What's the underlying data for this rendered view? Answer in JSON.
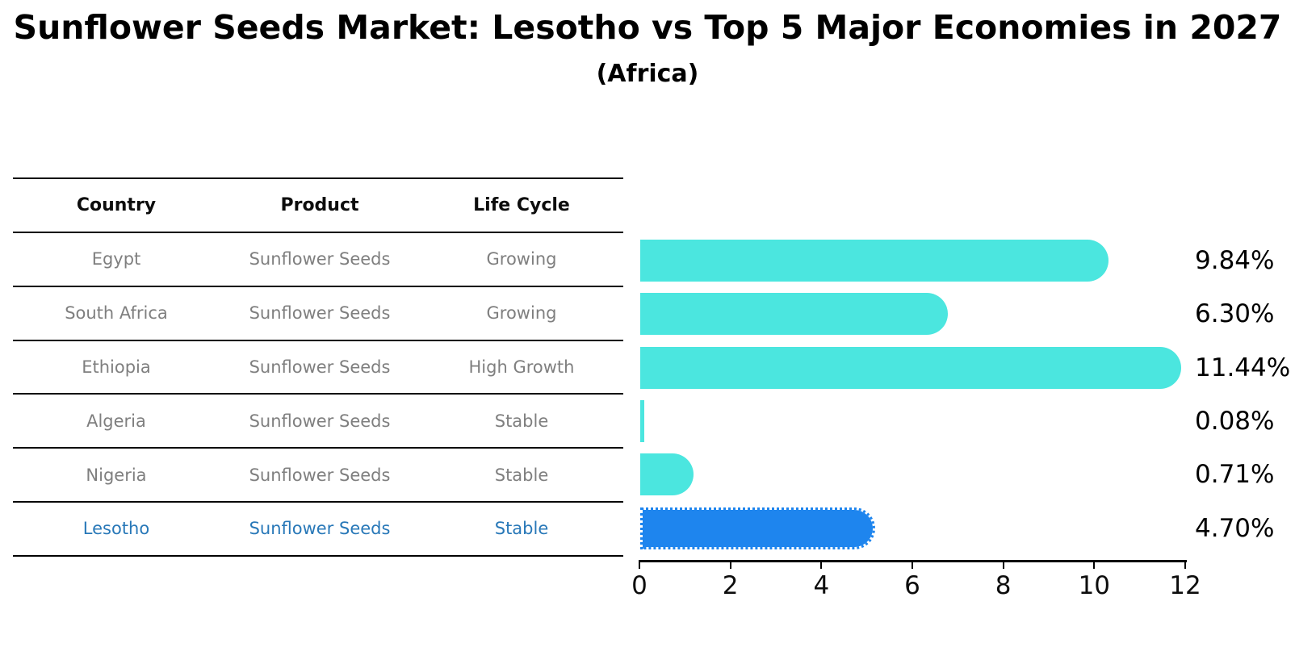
{
  "title": "Sunflower Seeds Market: Lesotho vs Top 5 Major Economies in 2027",
  "subtitle": "(Africa)",
  "table": {
    "headers": [
      "Country",
      "Product",
      "Life Cycle"
    ],
    "rows": [
      {
        "country": "Egypt",
        "product": "Sunflower Seeds",
        "life_cycle": "Growing",
        "highlight": false
      },
      {
        "country": "South Africa",
        "product": "Sunflower Seeds",
        "life_cycle": "Growing",
        "highlight": false
      },
      {
        "country": "Ethiopia",
        "product": "Sunflower Seeds",
        "life_cycle": "High Growth",
        "highlight": false
      },
      {
        "country": "Algeria",
        "product": "Sunflower Seeds",
        "life_cycle": "Stable",
        "highlight": false
      },
      {
        "country": "Nigeria",
        "product": "Sunflower Seeds",
        "life_cycle": "Stable",
        "highlight": false
      },
      {
        "country": "Lesotho",
        "product": "Sunflower Seeds",
        "life_cycle": "Stable",
        "highlight": true
      }
    ]
  },
  "chart_data": {
    "type": "bar",
    "orientation": "horizontal",
    "title": "Sunflower Seeds Market: Lesotho vs Top 5 Major Economies in 2027 (Africa)",
    "categories": [
      "Egypt",
      "South Africa",
      "Ethiopia",
      "Algeria",
      "Nigeria",
      "Lesotho"
    ],
    "values": [
      9.84,
      6.3,
      11.44,
      0.08,
      0.71,
      4.7
    ],
    "value_labels": [
      "9.84%",
      "6.30%",
      "11.44%",
      "0.08%",
      "0.71%",
      "4.70%"
    ],
    "xlabel": "",
    "ylabel": "",
    "xlim": [
      0,
      12
    ],
    "x_ticks": [
      0,
      2,
      4,
      6,
      8,
      10,
      12
    ],
    "grid": false,
    "legend": "none",
    "bar_color": "#4BE6DF",
    "highlight_bar_color": "#1E85EE",
    "highlight_index": 5,
    "highlight_edge_style": "dotted"
  },
  "colors": {
    "background": "#ffffff",
    "text_primary": "#000000",
    "text_muted": "#7f7f7f",
    "text_highlight": "#2878b8",
    "bar_turquoise": "#4BE6DF",
    "bar_blue": "#1E85EE"
  }
}
